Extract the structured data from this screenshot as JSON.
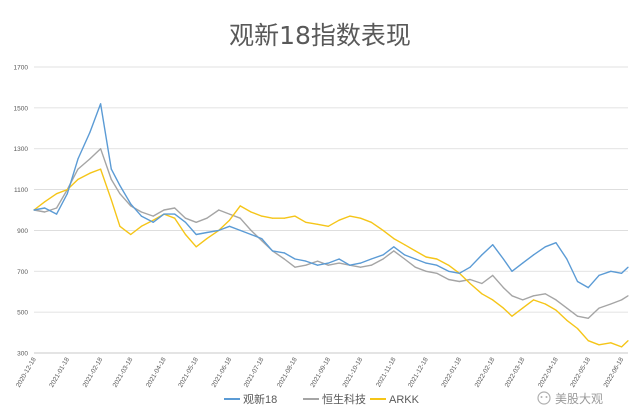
{
  "chart_data": {
    "type": "line",
    "title": "观新18指数表现",
    "xlabel": "",
    "ylabel": "",
    "ylim": [
      300,
      1700
    ],
    "yticks": [
      300,
      500,
      700,
      900,
      1100,
      1300,
      1500,
      1700
    ],
    "xticks": [
      "2020-12-18",
      "2021-01-18",
      "2021-02-18",
      "2021-03-18",
      "2021-04-18",
      "2021-05-18",
      "2021-06-18",
      "2021-07-18",
      "2021-08-18",
      "2021-09-18",
      "2021-10-18",
      "2021-11-18",
      "2021-12-18",
      "2022-01-18",
      "2022-02-18",
      "2022-03-18",
      "2022-04-18",
      "2022-05-18",
      "2022-06-18"
    ],
    "grid": "horizontal",
    "legend_position": "bottom",
    "x": [
      "2020-12-18",
      "2020-12-28",
      "2021-01-08",
      "2021-01-18",
      "2021-01-28",
      "2021-02-08",
      "2021-02-18",
      "2021-02-28",
      "2021-03-08",
      "2021-03-18",
      "2021-03-28",
      "2021-04-08",
      "2021-04-18",
      "2021-04-28",
      "2021-05-08",
      "2021-05-18",
      "2021-05-28",
      "2021-06-08",
      "2021-06-18",
      "2021-06-28",
      "2021-07-08",
      "2021-07-18",
      "2021-07-28",
      "2021-08-08",
      "2021-08-18",
      "2021-08-28",
      "2021-09-08",
      "2021-09-18",
      "2021-09-28",
      "2021-10-08",
      "2021-10-18",
      "2021-10-28",
      "2021-11-08",
      "2021-11-18",
      "2021-11-28",
      "2021-12-08",
      "2021-12-18",
      "2021-12-28",
      "2022-01-08",
      "2022-01-18",
      "2022-01-28",
      "2022-02-08",
      "2022-02-18",
      "2022-02-28",
      "2022-03-08",
      "2022-03-18",
      "2022-03-28",
      "2022-04-08",
      "2022-04-18",
      "2022-04-28",
      "2022-05-08",
      "2022-05-18",
      "2022-05-28",
      "2022-06-08",
      "2022-06-18",
      "2022-06-24"
    ],
    "series": [
      {
        "name": "观新18",
        "color": "#5b9bd5",
        "values": [
          1000,
          1010,
          980,
          1080,
          1250,
          1380,
          1520,
          1200,
          1120,
          1030,
          970,
          940,
          980,
          980,
          940,
          880,
          890,
          900,
          920,
          900,
          880,
          860,
          800,
          790,
          760,
          750,
          730,
          740,
          760,
          730,
          740,
          760,
          780,
          820,
          780,
          760,
          740,
          730,
          700,
          690,
          720,
          780,
          830,
          760,
          700,
          740,
          780,
          820,
          840,
          760,
          650,
          620,
          680,
          700,
          690,
          720
        ]
      },
      {
        "name": "恒生科技",
        "color": "#a5a5a5",
        "values": [
          1000,
          990,
          1010,
          1100,
          1200,
          1250,
          1300,
          1150,
          1080,
          1020,
          990,
          970,
          1000,
          1010,
          960,
          940,
          960,
          1000,
          980,
          960,
          900,
          850,
          800,
          760,
          720,
          730,
          750,
          730,
          740,
          730,
          720,
          730,
          760,
          800,
          760,
          720,
          700,
          690,
          660,
          650,
          660,
          640,
          680,
          620,
          580,
          560,
          580,
          590,
          560,
          520,
          480,
          470,
          520,
          540,
          560,
          580
        ]
      },
      {
        "name": "ARKK",
        "color": "#f5c518",
        "values": [
          1000,
          1040,
          1080,
          1100,
          1150,
          1180,
          1200,
          1050,
          920,
          880,
          920,
          950,
          980,
          960,
          880,
          820,
          860,
          900,
          950,
          1020,
          990,
          970,
          960,
          960,
          970,
          940,
          930,
          920,
          950,
          970,
          960,
          940,
          900,
          860,
          830,
          800,
          770,
          760,
          730,
          690,
          640,
          590,
          560,
          520,
          480,
          520,
          560,
          540,
          510,
          460,
          420,
          360,
          340,
          350,
          330,
          360
        ]
      }
    ]
  },
  "watermark": "美股大观",
  "colors": {
    "grid": "#d9d9d9",
    "text": "#595959"
  }
}
